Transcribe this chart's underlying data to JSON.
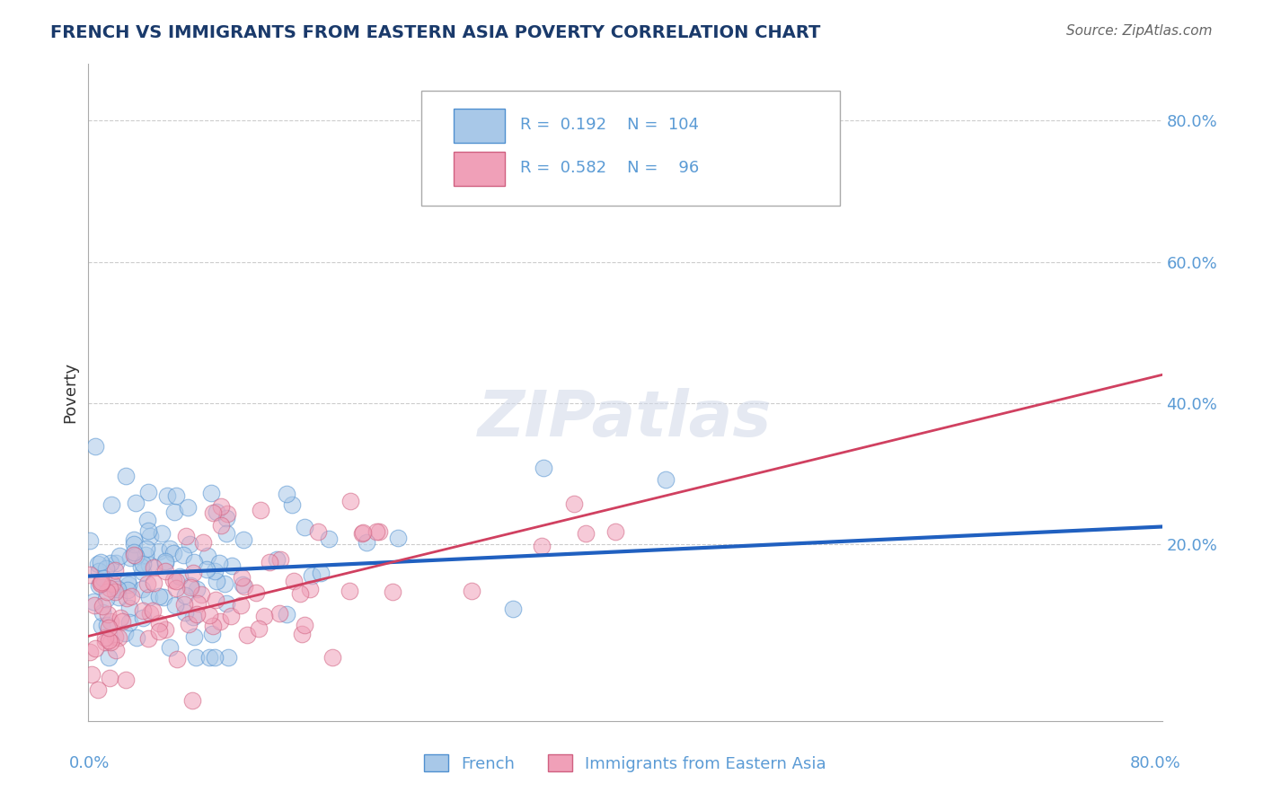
{
  "title": "FRENCH VS IMMIGRANTS FROM EASTERN ASIA POVERTY CORRELATION CHART",
  "source": "Source: ZipAtlas.com",
  "ylabel": "Poverty",
  "xmin": 0.0,
  "xmax": 0.8,
  "ymin": -0.05,
  "ymax": 0.88,
  "french_color": "#a8c8e8",
  "french_edge_color": "#5090d0",
  "french_line_color": "#2060c0",
  "immigrant_color": "#f0a0b8",
  "immigrant_edge_color": "#d06080",
  "immigrant_line_color": "#d04060",
  "background_color": "#ffffff",
  "grid_color": "#cccccc",
  "french_R": 0.192,
  "french_N": 104,
  "immigrant_R": 0.582,
  "immigrant_N": 96,
  "blue_line_y0": 0.155,
  "blue_line_y1": 0.225,
  "pink_line_y0": 0.07,
  "pink_line_y1": 0.44,
  "watermark_text": "ZIPatlas",
  "tick_color": "#5b9bd5",
  "title_color": "#1a3a6b",
  "source_color": "#666666"
}
